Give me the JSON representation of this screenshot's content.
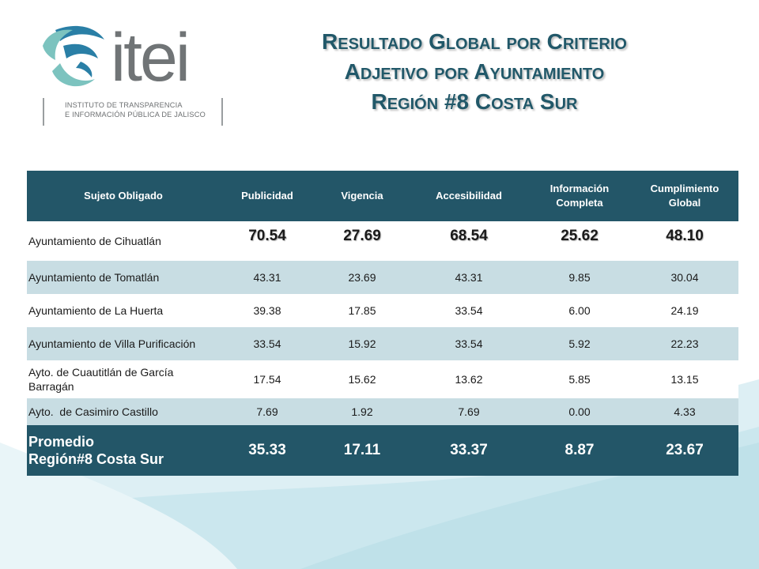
{
  "logo": {
    "word": "itei",
    "caption_line1": "INSTITUTO DE TRANSPARENCIA",
    "caption_line2": "E INFORMACIÓN PÚBLICA DE JALISCO"
  },
  "title": {
    "line1": "Resultado Global por Criterio",
    "line2": "Adjetivo por Ayuntamiento",
    "line3": "Región #8 Costa Sur"
  },
  "table": {
    "headers": [
      "Sujeto Obligado",
      "Publicidad",
      "Vigencia",
      "Accesibilidad",
      "Información Completa",
      "Cumplimiento Global"
    ],
    "rows": [
      {
        "name": "Ayuntamiento de Cihuatlán",
        "values": [
          "70.54",
          "27.69",
          "68.54",
          "25.62",
          "48.10"
        ]
      },
      {
        "name": "Ayuntamiento de Tomatlán",
        "values": [
          "43.31",
          "23.69",
          "43.31",
          "9.85",
          "30.04"
        ]
      },
      {
        "name": "Ayuntamiento de La Huerta",
        "values": [
          "39.38",
          "17.85",
          "33.54",
          "6.00",
          "24.19"
        ]
      },
      {
        "name": "Ayuntamiento de Villa Purificación",
        "values": [
          "33.54",
          "15.92",
          "33.54",
          "5.92",
          "22.23"
        ]
      },
      {
        "name": "Ayto. de Cuautitlán de García Barragán",
        "values": [
          "17.54",
          "15.62",
          "13.62",
          "5.85",
          "13.15"
        ]
      },
      {
        "name": "Ayto.  de Casimiro Castillo",
        "values": [
          "7.69",
          "1.92",
          "7.69",
          "0.00",
          "4.33"
        ]
      }
    ],
    "average": {
      "name_line1": "Promedio",
      "name_line2": "Región#8 Costa Sur",
      "values": [
        "35.33",
        "17.11",
        "33.37",
        "8.87",
        "23.67"
      ]
    }
  },
  "colors": {
    "header_bg": "#235668",
    "stripe": "#c8dde3",
    "title": "#215869",
    "logo_blue": "#2a7fa6",
    "logo_teal": "#7cc3bf"
  }
}
